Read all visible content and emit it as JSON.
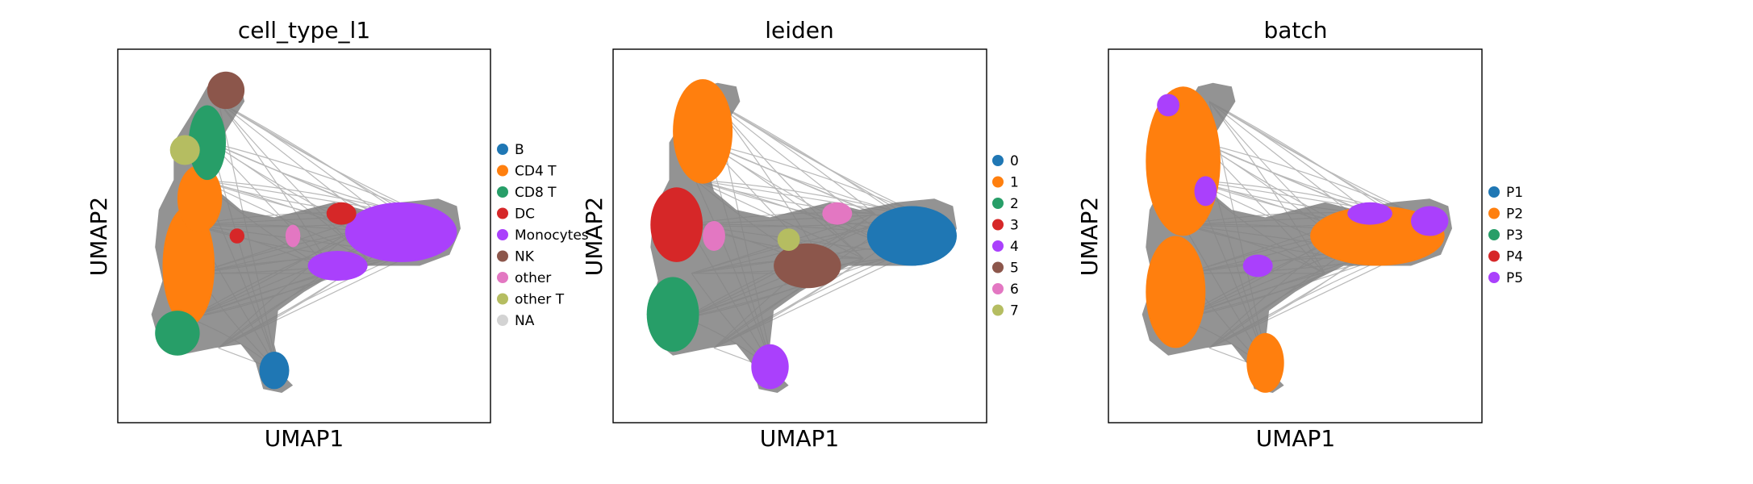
{
  "chart_data": [
    {
      "type": "scatter",
      "title": "cell_type_l1",
      "xlabel": "UMAP1",
      "ylabel": "UMAP2",
      "grid": false,
      "legend_placement": "right",
      "edge_color": "#808080",
      "series": [
        {
          "name": "B",
          "color": "#1f77b4"
        },
        {
          "name": "CD4 T",
          "color": "#ff7f0e"
        },
        {
          "name": "CD8 T",
          "color": "#279e68"
        },
        {
          "name": "DC",
          "color": "#d62728"
        },
        {
          "name": "Monocytes",
          "color": "#aa40fc"
        },
        {
          "name": "NK",
          "color": "#8c564b"
        },
        {
          "name": "other",
          "color": "#e377c2"
        },
        {
          "name": "other T",
          "color": "#b5bd61"
        },
        {
          "name": "NA",
          "color": "#d3d3d3"
        }
      ]
    },
    {
      "type": "scatter",
      "title": "leiden",
      "xlabel": "UMAP1",
      "ylabel": "UMAP2",
      "grid": false,
      "legend_placement": "right",
      "edge_color": "#808080",
      "series": [
        {
          "name": "0",
          "color": "#1f77b4"
        },
        {
          "name": "1",
          "color": "#ff7f0e"
        },
        {
          "name": "2",
          "color": "#279e68"
        },
        {
          "name": "3",
          "color": "#d62728"
        },
        {
          "name": "4",
          "color": "#aa40fc"
        },
        {
          "name": "5",
          "color": "#8c564b"
        },
        {
          "name": "6",
          "color": "#e377c2"
        },
        {
          "name": "7",
          "color": "#b5bd61"
        }
      ]
    },
    {
      "type": "scatter",
      "title": "batch",
      "xlabel": "UMAP1",
      "ylabel": "UMAP2",
      "grid": false,
      "legend_placement": "right",
      "edge_color": "#808080",
      "series": [
        {
          "name": "P1",
          "color": "#1f77b4"
        },
        {
          "name": "P2",
          "color": "#ff7f0e"
        },
        {
          "name": "P3",
          "color": "#279e68"
        },
        {
          "name": "P4",
          "color": "#d62728"
        },
        {
          "name": "P5",
          "color": "#aa40fc"
        }
      ]
    }
  ]
}
